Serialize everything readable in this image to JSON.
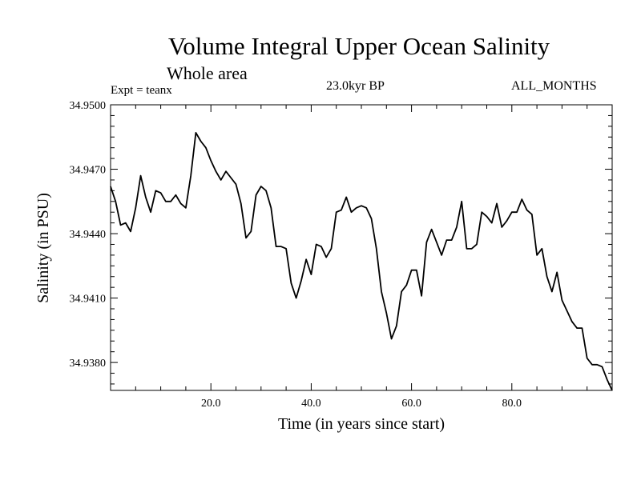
{
  "chart_data": {
    "type": "line",
    "title": "Volume Integral Upper Ocean Salinity",
    "subtitle": "Whole area",
    "annotations": {
      "experiment": "Expt = teanx",
      "period": "23.0kyr BP",
      "months": "ALL_MONTHS"
    },
    "xlabel": "Time (in years since start)",
    "ylabel": "Salinity (in PSU)",
    "xlim": [
      0,
      100
    ],
    "ylim": [
      34.9367,
      34.95
    ],
    "x_ticks": [
      "20.0",
      "40.0",
      "60.0",
      "80.0"
    ],
    "y_ticks": [
      "34.9500",
      "34.9470",
      "34.9440",
      "34.9410",
      "34.9380"
    ],
    "grid": false,
    "series": [
      {
        "name": "Salinity",
        "x": [
          0,
          1,
          2,
          3,
          4,
          5,
          6,
          7,
          8,
          9,
          10,
          11,
          12,
          13,
          14,
          15,
          16,
          17,
          18,
          19,
          20,
          21,
          22,
          23,
          24,
          25,
          26,
          27,
          28,
          29,
          30,
          31,
          32,
          33,
          34,
          35,
          36,
          37,
          38,
          39,
          40,
          41,
          42,
          43,
          44,
          45,
          46,
          47,
          48,
          49,
          50,
          51,
          52,
          53,
          54,
          55,
          56,
          57,
          58,
          59,
          60,
          61,
          62,
          63,
          64,
          65,
          66,
          67,
          68,
          69,
          70,
          71,
          72,
          73,
          74,
          75,
          76,
          77,
          78,
          79,
          80,
          81,
          82,
          83,
          84,
          85,
          86,
          87,
          88,
          89,
          90,
          91,
          92,
          93,
          94,
          95,
          96,
          97,
          98,
          99,
          100
        ],
        "values": [
          34.9462,
          34.9455,
          34.9444,
          34.9445,
          34.9441,
          34.9452,
          34.9467,
          34.9457,
          34.945,
          34.946,
          34.9459,
          34.9455,
          34.9455,
          34.9458,
          34.9454,
          34.9452,
          34.9467,
          34.9487,
          34.9483,
          34.948,
          34.9474,
          34.9469,
          34.9465,
          34.9469,
          34.9466,
          34.9463,
          34.9454,
          34.9438,
          34.9441,
          34.9458,
          34.9462,
          34.946,
          34.9452,
          34.9434,
          34.9434,
          34.9433,
          34.9417,
          34.941,
          34.9418,
          34.9428,
          34.9421,
          34.9435,
          34.9434,
          34.9429,
          34.9433,
          34.945,
          34.9451,
          34.9457,
          34.945,
          34.9452,
          34.9453,
          34.9452,
          34.9447,
          34.9433,
          34.9413,
          34.9403,
          34.9391,
          34.9397,
          34.9413,
          34.9416,
          34.9423,
          34.9423,
          34.9411,
          34.9436,
          34.9442,
          34.9436,
          34.943,
          34.9437,
          34.9437,
          34.9443,
          34.9455,
          34.9433,
          34.9433,
          34.9435,
          34.945,
          34.9448,
          34.9445,
          34.9454,
          34.9443,
          34.9446,
          34.945,
          34.945,
          34.9456,
          34.9451,
          34.9449,
          34.943,
          34.9433,
          34.942,
          34.9413,
          34.9422,
          34.9409,
          34.9404,
          34.9399,
          34.9396,
          34.9396,
          34.9382,
          34.9379,
          34.9379,
          34.9378,
          34.9372,
          34.9367
        ]
      }
    ]
  },
  "colors": {
    "line": "#000000",
    "axis": "#000000",
    "background": "#ffffff"
  }
}
